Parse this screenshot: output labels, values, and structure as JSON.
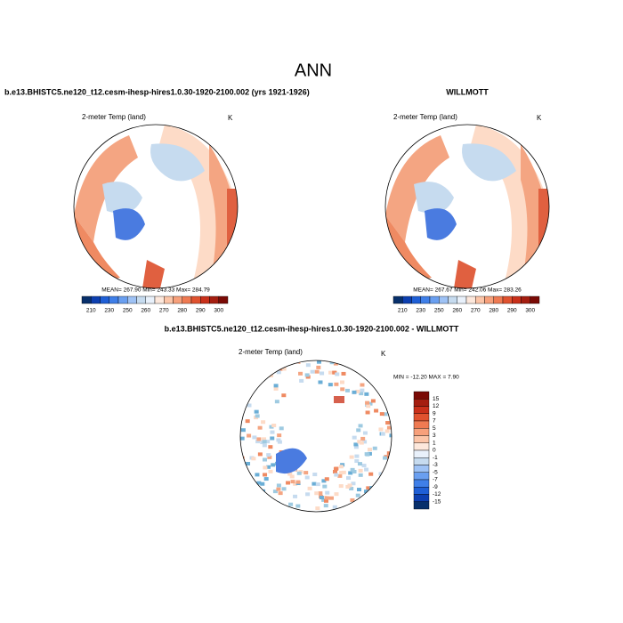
{
  "title": "ANN",
  "panels": [
    {
      "header": "b.e13.BHISTC5.ne120_t12.cesm-ihesp-hires1.0.30-1920-2100.002 (yrs 1921-1926)",
      "field_label": "2-meter Temp (land)",
      "units": "K",
      "stats": "MEAN= 267.90  Min= 243.33  Max= 284.79",
      "colorbar_labels": [
        "210",
        "230",
        "250",
        "260",
        "270",
        "280",
        "290",
        "300"
      ]
    },
    {
      "header": "WILLMOTT",
      "field_label": "2-meter Temp (land)",
      "units": "K",
      "stats": "MEAN= 267.67  Min= 242.06  Max= 283.26",
      "colorbar_labels": [
        "210",
        "230",
        "250",
        "260",
        "270",
        "280",
        "290",
        "300"
      ]
    }
  ],
  "difference": {
    "header": "b.e13.BHISTC5.ne120_t12.cesm-ihesp-hires1.0.30-1920-2100.002 - WILLMOTT",
    "field_label": "2-meter Temp (land)",
    "units": "K",
    "stats": "MIN = -12.20 MAX =  7.90",
    "colorbar_labels": [
      "15",
      "12",
      "9",
      "7",
      "5",
      "3",
      "1",
      "0",
      "-1",
      "-3",
      "-5",
      "-7",
      "-9",
      "-12",
      "-15"
    ]
  }
}
